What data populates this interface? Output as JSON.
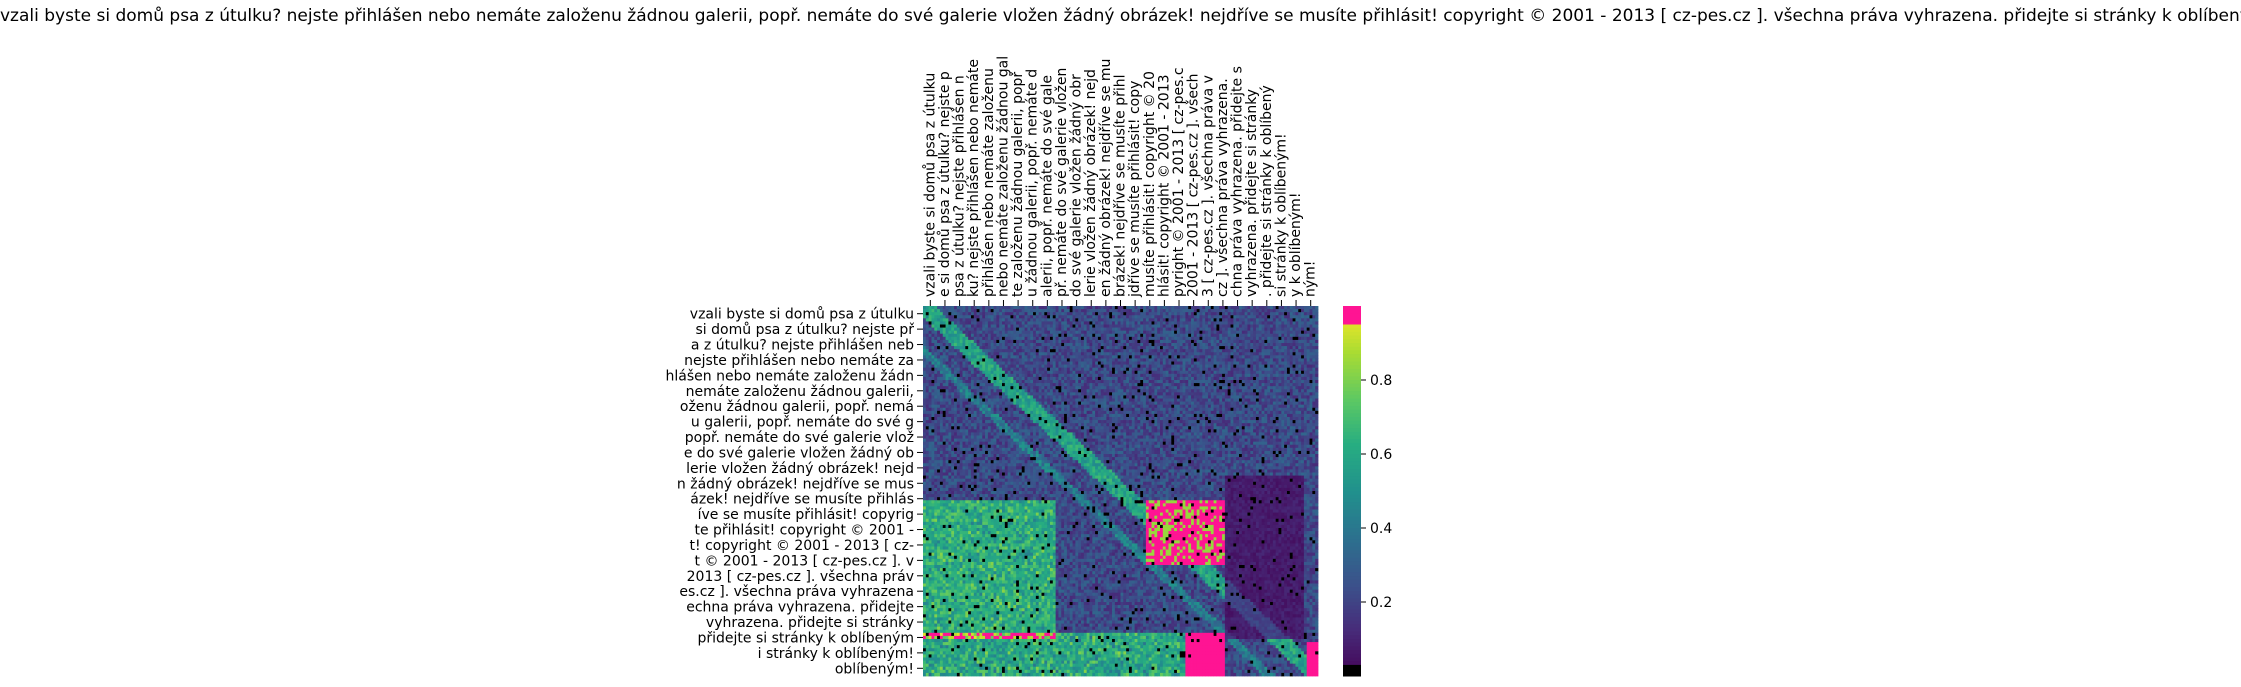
{
  "chart_data": {
    "type": "heatmap",
    "title": "vzali byste si domů psa z útulku? nejste přihlášen nebo nemáte založenu žádnou galerii, popř. nemáte do své galerie vložen žádný obrázek! nejdříve se musíte přihlásit! copyright © 2001 - 2013 [ cz-pes.cz ]. všechna práva vyhrazena. přidejte si stránky k oblíbeným!",
    "x_tick_labels": [
      "vzali byste si domů psa z útulku",
      "e si domů psa z útulku? nejste p",
      " psa z útulku? nejste přihlášen n",
      "ku? nejste přihlášen nebo nemáte",
      " přihlášen nebo nemáte založenu",
      " nebo nemáte založenu žádnou gal",
      "te založenu žádnou galerii, popř",
      "u žádnou galerii, popř. nemáte d",
      "alerii, popř. nemáte do své gale",
      "př. nemáte do své galerie vložen",
      " do své galerie vložen žádný obr",
      "lerie vložen žádný obrázek! nejd",
      "en žádný obrázek! nejdříve se mu",
      "brázek! nejdříve se musíte přihl",
      "jdříve se musíte přihlásit! copy",
      " musíte přihlásit! copyright © 20",
      "hlásit! copyright © 2001 - 2013",
      "pyright © 2001 - 2013 [ cz-pes.c",
      "2001 - 2013 [ cz-pes.cz ]. všech",
      "3 [ cz-pes.cz ]. všechna práva v",
      "cz ]. všechna práva vyhrazena. ",
      "chna práva vyhrazena. přidejte s",
      " vyhrazena. přidejte si stránky",
      ". přidejte si stránky k oblíbený",
      " si stránky k oblíbeným!",
      "y k oblíbeným!",
      "ným!"
    ],
    "y_tick_labels": [
      "vzali byste si domů psa z útulku",
      "si domů psa z útulku? nejste př",
      "a z útulku? nejste přihlášen neb",
      "nejste přihlášen nebo nemáte za",
      "hlášen nebo nemáte založenu žádn",
      " nemáte založenu žádnou galerii, ",
      "oženu žádnou galerii, popř. nemá",
      "u galerii, popř. nemáte do své g",
      "popř. nemáte do své galerie vlož",
      "e do své galerie vložen žádný ob",
      "lerie vložen žádný obrázek! nejd",
      "n žádný obrázek! nejdříve se mus",
      "ázek! nejdříve se musíte přihlás",
      "íve se musíte přihlásit! copyrig",
      "te přihlásit! copyright © 2001 -",
      "t! copyright © 2001 - 2013 [ cz-",
      "t © 2001 - 2013 [ cz-pes.cz ]. v",
      "2013 [ cz-pes.cz ]. všechna práv",
      "es.cz ]. všechna práva vyhrazena",
      "echna práva vyhrazena. přidejte ",
      "vyhrazena. přidejte si stránky ",
      "přidejte si stránky k oblíbeným",
      "i stránky k oblíbeným!",
      "oblíbeným!"
    ],
    "colorbar": {
      "ticks": [
        0.2,
        0.4,
        0.6,
        0.8
      ],
      "range": [
        0,
        1
      ],
      "colormap": "viridis",
      "extremes": {
        "low": "#000000",
        "high": "#ff1493"
      }
    },
    "grid": false
  }
}
